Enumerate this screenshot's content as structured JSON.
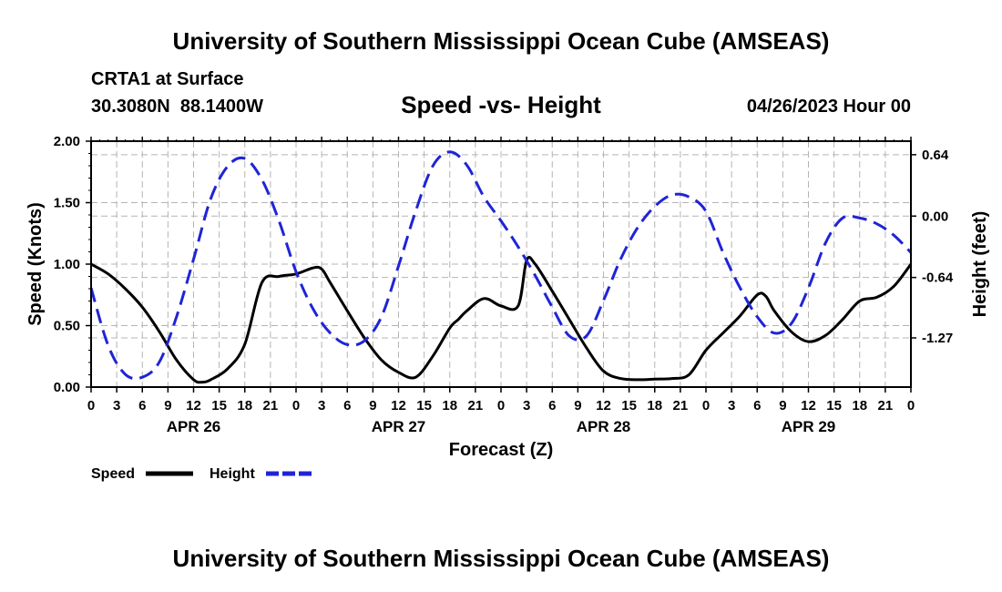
{
  "header": {
    "title": "University of Southern Mississippi Ocean Cube (AMSEAS)",
    "station": "CRTA1 at Surface",
    "lat": "30.3080N",
    "lon": "88.1400W",
    "subtitle": "Speed -vs- Height",
    "run_time": "04/26/2023 Hour 00"
  },
  "footer": {
    "title": "University of Southern Mississippi Ocean Cube (AMSEAS)"
  },
  "colors": {
    "speed": "#000000",
    "height": "#1f24d6",
    "grid": "#b4b4b4"
  },
  "chart_data": {
    "type": "line",
    "title": "Speed -vs- Height",
    "xlabel": "Forecast (Z)",
    "ylabel": "Speed (Knots)",
    "y2label": "Height (feet)",
    "x_unit": "hours since 04/26/2023 00Z",
    "xlim": [
      0,
      96
    ],
    "x_tick_step_hours": 3,
    "x_tick_labels": [
      "0",
      "3",
      "6",
      "9",
      "12",
      "15",
      "18",
      "21",
      "0",
      "3",
      "6",
      "9",
      "12",
      "15",
      "18",
      "21",
      "0",
      "3",
      "6",
      "9",
      "12",
      "15",
      "18",
      "21",
      "0",
      "3",
      "6",
      "9",
      "12",
      "15",
      "18",
      "21",
      "0"
    ],
    "day_labels": [
      {
        "label": "APR 26",
        "x": 12
      },
      {
        "label": "APR 27",
        "x": 36
      },
      {
        "label": "APR 28",
        "x": 60
      },
      {
        "label": "APR 29",
        "x": 84
      }
    ],
    "ylim": [
      0,
      2.0
    ],
    "y_ticks": [
      0,
      0.5,
      1.0,
      1.5,
      2.0
    ],
    "y_tick_labels": [
      "0.00",
      "0.50",
      "1.00",
      "1.50",
      "2.00"
    ],
    "y2_ticks": [
      0.64,
      0.0,
      -0.64,
      -1.27
    ],
    "y2_tick_labels": [
      "0.64",
      "0.00",
      "-0.64",
      "-1.27"
    ],
    "y2_map": [
      [
        -1.27,
        0.4
      ],
      [
        0.64,
        1.89
      ]
    ],
    "legend": [
      {
        "name": "Speed",
        "style": "solid"
      },
      {
        "name": "Height",
        "style": "dashed"
      }
    ],
    "series": [
      {
        "name": "Speed",
        "axis": "left",
        "style": "solid",
        "x": [
          0,
          2,
          4,
          6,
          8,
          10,
          12,
          13,
          14,
          16,
          18,
          20,
          22,
          24,
          26,
          27,
          28,
          30,
          32,
          34,
          36,
          38,
          40,
          42,
          43,
          44,
          46,
          48,
          50,
          51,
          52,
          54,
          56,
          58,
          60,
          62,
          64,
          66,
          68,
          70,
          72,
          74,
          76,
          78,
          79,
          80,
          82,
          84,
          86,
          88,
          90,
          92,
          94,
          96
        ],
        "values": [
          1.0,
          0.92,
          0.8,
          0.65,
          0.45,
          0.22,
          0.06,
          0.04,
          0.06,
          0.15,
          0.35,
          0.85,
          0.9,
          0.92,
          0.97,
          0.96,
          0.85,
          0.62,
          0.4,
          0.22,
          0.12,
          0.08,
          0.25,
          0.48,
          0.55,
          0.62,
          0.72,
          0.66,
          0.66,
          1.03,
          1.0,
          0.78,
          0.55,
          0.32,
          0.13,
          0.07,
          0.06,
          0.065,
          0.07,
          0.1,
          0.3,
          0.44,
          0.58,
          0.75,
          0.74,
          0.62,
          0.45,
          0.37,
          0.42,
          0.55,
          0.7,
          0.73,
          0.82,
          1.0
        ]
      },
      {
        "name": "Height",
        "axis": "right",
        "style": "dashed",
        "x": [
          0,
          2,
          4,
          6,
          8,
          10,
          12,
          14,
          16,
          18,
          20,
          22,
          24,
          26,
          28,
          30,
          32,
          34,
          36,
          38,
          40,
          42,
          44,
          46,
          48,
          50,
          52,
          54,
          56,
          58,
          60,
          62,
          64,
          66,
          68,
          70,
          72,
          74,
          76,
          78,
          80,
          82,
          84,
          86,
          88,
          90,
          92,
          94,
          96
        ],
        "values": [
          -0.75,
          -1.35,
          -1.65,
          -1.68,
          -1.52,
          -1.05,
          -0.45,
          0.18,
          0.52,
          0.6,
          0.38,
          -0.05,
          -0.58,
          -0.97,
          -1.22,
          -1.34,
          -1.3,
          -1.05,
          -0.52,
          0.05,
          0.52,
          0.67,
          0.53,
          0.2,
          -0.05,
          -0.32,
          -0.62,
          -0.95,
          -1.25,
          -1.25,
          -0.88,
          -0.45,
          -0.12,
          0.1,
          0.22,
          0.2,
          0.05,
          -0.38,
          -0.75,
          -1.05,
          -1.22,
          -1.12,
          -0.75,
          -0.28,
          -0.02,
          -0.02,
          -0.08,
          -0.2,
          -0.38
        ]
      }
    ]
  }
}
